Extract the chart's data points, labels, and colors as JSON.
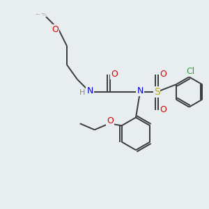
{
  "bg_color": "#e8edf0",
  "bond_color": "#3a3a3a",
  "N_color": "#0000cc",
  "O_color": "#dd0000",
  "S_color": "#bbaa00",
  "Cl_color": "#22aa22",
  "H_color": "#888888",
  "line_width": 1.4,
  "figsize": [
    3.0,
    3.0
  ],
  "dpi": 100,
  "xlim": [
    0,
    10
  ],
  "ylim": [
    0,
    10
  ]
}
